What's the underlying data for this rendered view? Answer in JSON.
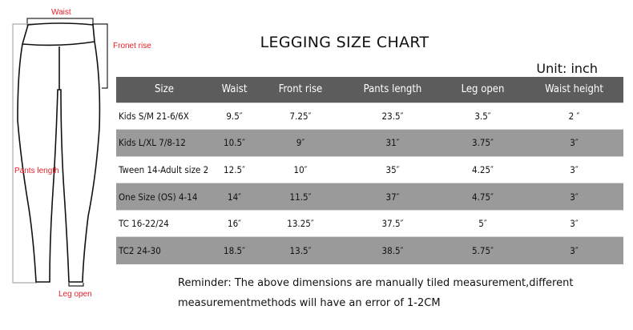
{
  "diagram": {
    "waist_label": "Waist",
    "front_rise_label": "Fronet rise",
    "pants_length_label": "Pants length",
    "leg_open_label": "Leg open"
  },
  "title": "LEGGING SIZE CHART",
  "unit": "Unit: inch",
  "table": {
    "headers": [
      "Size",
      "Waist",
      "Front rise",
      "Pants length",
      "Leg open",
      "Waist height"
    ],
    "rows": [
      [
        "Kids S/M 21-6/6X",
        "9.5″",
        "7.25″",
        "23.5″",
        "3.5″",
        "2 ″"
      ],
      [
        "Kids L/XL 7/8-12",
        "10.5″",
        "9″",
        "31″",
        "3.75″",
        "3″"
      ],
      [
        "Tween 14-Adult size 2",
        "12.5″",
        "10″",
        "35″",
        "4.25″",
        "3″"
      ],
      [
        "One Size  (OS)   4-14",
        "14″",
        "11.5″",
        "37″",
        "4.75″",
        "3″"
      ],
      [
        "TC 16-22/24",
        "16″",
        "13.25″",
        "37.5″",
        "5″",
        "3″"
      ],
      [
        "TC2 24-30",
        "18.5″",
        "13.5″",
        "38.5″",
        "5.75″",
        "3″"
      ]
    ]
  },
  "reminder": {
    "line1": "Reminder: The above dimensions are manually tiled measurement,different",
    "line2": "measurementmethods will have an error of 1-2CM"
  },
  "colors": {
    "header_bg": "#5c5c5c",
    "stripe_bg": "#9a9a9a",
    "label_red": "#e8202a"
  }
}
